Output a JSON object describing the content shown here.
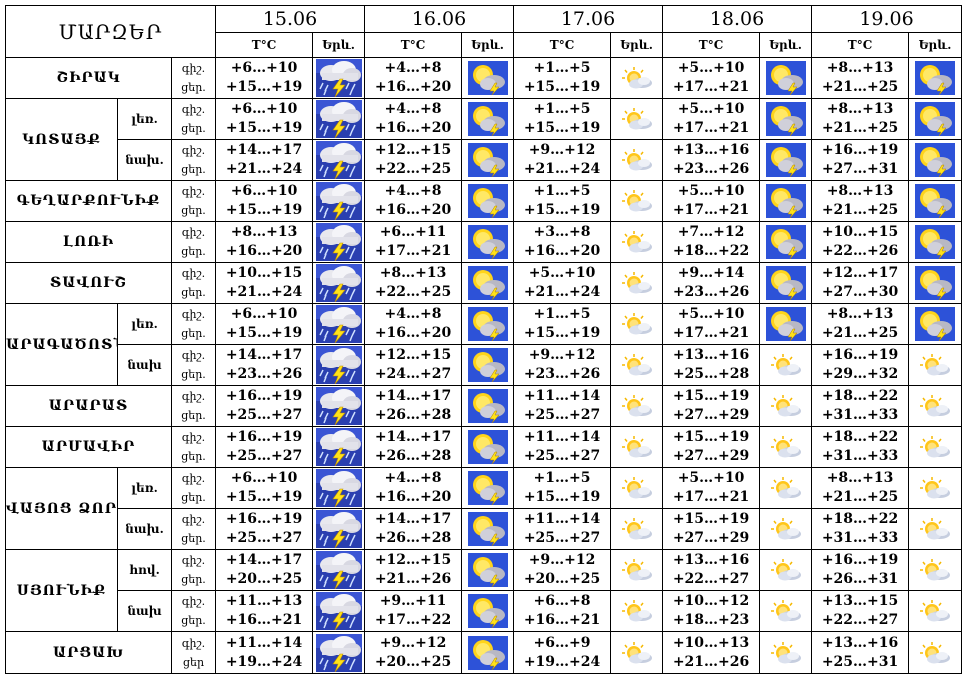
{
  "header_label": "ՄԱՐԶԵՐ",
  "dates": [
    "15.06",
    "16.06",
    "17.06",
    "18.06",
    "19.06"
  ],
  "col_temp": "T°C",
  "col_weather": "Երև.",
  "rows": [
    {
      "region": "ՇԻՐԱԿ",
      "zone": "",
      "labels": [
        "գիշ.",
        "ցեր."
      ],
      "cells": [
        {
          "n": "+6…+10",
          "d": "+15…+19",
          "icon": "thunder-rain-icon"
        },
        {
          "n": "+4…+8",
          "d": "+16…+20",
          "icon": "sun-thunder-icon"
        },
        {
          "n": "+1…+5",
          "d": "+15…+19",
          "icon": "sun-cloud-icon"
        },
        {
          "n": "+5…+10",
          "d": "+17…+21",
          "icon": "sun-thunder-icon"
        },
        {
          "n": "+8…+13",
          "d": "+21…+25",
          "icon": "sun-thunder-icon"
        }
      ]
    },
    {
      "region": "ԿՈՏԱՅՔ",
      "zone": "լեռ.",
      "labels": [
        "գիշ.",
        "ցեր."
      ],
      "cells": [
        {
          "n": "+6…+10",
          "d": "+15…+19",
          "icon": "thunder-rain-icon"
        },
        {
          "n": "+4…+8",
          "d": "+16…+20",
          "icon": "sun-thunder-icon"
        },
        {
          "n": "+1…+5",
          "d": "+15…+19",
          "icon": "sun-cloud-icon"
        },
        {
          "n": "+5…+10",
          "d": "+17…+21",
          "icon": "sun-thunder-icon"
        },
        {
          "n": "+8…+13",
          "d": "+21…+25",
          "icon": "sun-thunder-icon"
        }
      ]
    },
    {
      "region": "",
      "zone": "նախ.",
      "labels": [
        "գիշ.",
        "ցեր."
      ],
      "cells": [
        {
          "n": "+14…+17",
          "d": "+21…+24",
          "icon": "thunder-rain-icon"
        },
        {
          "n": "+12…+15",
          "d": "+22…+25",
          "icon": "sun-thunder-icon"
        },
        {
          "n": "+9…+12",
          "d": "+21…+24",
          "icon": "sun-cloud-icon"
        },
        {
          "n": "+13…+16",
          "d": "+23…+26",
          "icon": "sun-thunder-icon"
        },
        {
          "n": "+16…+19",
          "d": "+27…+31",
          "icon": "sun-thunder-icon"
        }
      ]
    },
    {
      "region": "ԳԵՂԱՐՔՈՒՆԻՔ",
      "zone": "",
      "labels": [
        "գիշ.",
        "ցեր."
      ],
      "cells": [
        {
          "n": "+6…+10",
          "d": "+15…+19",
          "icon": "thunder-rain-icon"
        },
        {
          "n": "+4…+8",
          "d": "+16…+20",
          "icon": "sun-thunder-icon"
        },
        {
          "n": "+1…+5",
          "d": "+15…+19",
          "icon": "sun-cloud-icon"
        },
        {
          "n": "+5…+10",
          "d": "+17…+21",
          "icon": "sun-thunder-icon"
        },
        {
          "n": "+8…+13",
          "d": "+21…+25",
          "icon": "sun-thunder-icon"
        }
      ]
    },
    {
      "region": "ԼՈՌԻ",
      "zone": "",
      "labels": [
        "գիշ.",
        "ցեր."
      ],
      "cells": [
        {
          "n": "+8…+13",
          "d": "+16…+20",
          "icon": "thunder-rain-icon"
        },
        {
          "n": "+6…+11",
          "d": "+17…+21",
          "icon": "sun-thunder-icon"
        },
        {
          "n": "+3…+8",
          "d": "+16…+20",
          "icon": "sun-cloud-icon"
        },
        {
          "n": "+7…+12",
          "d": "+18…+22",
          "icon": "sun-thunder-icon"
        },
        {
          "n": "+10…+15",
          "d": "+22…+26",
          "icon": "sun-thunder-icon"
        }
      ]
    },
    {
      "region": "ՏԱՎՈՒՇ",
      "zone": "",
      "labels": [
        "գիշ.",
        "ցեր."
      ],
      "cells": [
        {
          "n": "+10…+15",
          "d": "+21…+24",
          "icon": "thunder-rain-icon"
        },
        {
          "n": "+8…+13",
          "d": "+22…+25",
          "icon": "sun-thunder-icon"
        },
        {
          "n": "+5…+10",
          "d": "+21…+24",
          "icon": "sun-cloud-icon"
        },
        {
          "n": "+9…+14",
          "d": "+23…+26",
          "icon": "sun-thunder-icon"
        },
        {
          "n": "+12…+17",
          "d": "+27…+30",
          "icon": "sun-thunder-icon"
        }
      ]
    },
    {
      "region": "ԱՐԱԳԱԾՈՏՆ",
      "zone": "լեռ.",
      "labels": [
        "գիշ.",
        "ցեր."
      ],
      "cells": [
        {
          "n": "+6…+10",
          "d": "+15…+19",
          "icon": "thunder-rain-icon"
        },
        {
          "n": "+4…+8",
          "d": "+16…+20",
          "icon": "sun-thunder-icon"
        },
        {
          "n": "+1…+5",
          "d": "+15…+19",
          "icon": "sun-cloud-icon"
        },
        {
          "n": "+5…+10",
          "d": "+17…+21",
          "icon": "sun-thunder-icon"
        },
        {
          "n": "+8…+13",
          "d": "+21…+25",
          "icon": "sun-thunder-icon"
        }
      ]
    },
    {
      "region": "",
      "zone": "նախ",
      "labels": [
        "գիշ.",
        "ցեր."
      ],
      "cells": [
        {
          "n": "+14…+17",
          "d": "+23…+26",
          "icon": "thunder-rain-icon"
        },
        {
          "n": "+12…+15",
          "d": "+24…+27",
          "icon": "sun-thunder-icon"
        },
        {
          "n": "+9…+12",
          "d": "+23…+26",
          "icon": "sun-cloud-icon"
        },
        {
          "n": "+13…+16",
          "d": "+25…+28",
          "icon": "sun-cloud-icon"
        },
        {
          "n": "+16…+19",
          "d": "+29…+32",
          "icon": "sun-cloud-icon"
        }
      ]
    },
    {
      "region": "ԱՐԱՐԱՏ",
      "zone": "",
      "labels": [
        "գիշ.",
        "ցեր."
      ],
      "cells": [
        {
          "n": "+16…+19",
          "d": "+25…+27",
          "icon": "thunder-rain-icon"
        },
        {
          "n": "+14…+17",
          "d": "+26…+28",
          "icon": "sun-thunder-icon"
        },
        {
          "n": "+11…+14",
          "d": "+25…+27",
          "icon": "sun-cloud-icon"
        },
        {
          "n": "+15…+19",
          "d": "+27…+29",
          "icon": "sun-cloud-icon"
        },
        {
          "n": "+18…+22",
          "d": "+31…+33",
          "icon": "sun-cloud-icon"
        }
      ]
    },
    {
      "region": "ԱՐՄԱՎԻՐ",
      "zone": "",
      "labels": [
        "գիշ.",
        "ցեր."
      ],
      "cells": [
        {
          "n": "+16…+19",
          "d": "+25…+27",
          "icon": "thunder-rain-icon"
        },
        {
          "n": "+14…+17",
          "d": "+26…+28",
          "icon": "sun-thunder-icon"
        },
        {
          "n": "+11…+14",
          "d": "+25…+27",
          "icon": "sun-cloud-icon"
        },
        {
          "n": "+15…+19",
          "d": "+27…+29",
          "icon": "sun-cloud-icon"
        },
        {
          "n": "+18…+22",
          "d": "+31…+33",
          "icon": "sun-cloud-icon"
        }
      ]
    },
    {
      "region": "ՎԱՅՈՑ ՁՈՐ",
      "zone": "լեռ.",
      "labels": [
        "գիշ.",
        "ցեր."
      ],
      "cells": [
        {
          "n": "+6…+10",
          "d": "+15…+19",
          "icon": "thunder-rain-icon"
        },
        {
          "n": "+4…+8",
          "d": "+16…+20",
          "icon": "sun-thunder-icon"
        },
        {
          "n": "+1…+5",
          "d": "+15…+19",
          "icon": "sun-cloud-icon"
        },
        {
          "n": "+5…+10",
          "d": "+17…+21",
          "icon": "sun-cloud-icon"
        },
        {
          "n": "+8…+13",
          "d": "+21…+25",
          "icon": "sun-cloud-icon"
        }
      ]
    },
    {
      "region": "",
      "zone": "նախ.",
      "labels": [
        "գիշ.",
        "ցեր."
      ],
      "cells": [
        {
          "n": "+16…+19",
          "d": "+25…+27",
          "icon": "thunder-rain-icon"
        },
        {
          "n": "+14…+17",
          "d": "+26…+28",
          "icon": "sun-thunder-icon"
        },
        {
          "n": "+11…+14",
          "d": "+25…+27",
          "icon": "sun-cloud-icon"
        },
        {
          "n": "+15…+19",
          "d": "+27…+29",
          "icon": "sun-cloud-icon"
        },
        {
          "n": "+18…+22",
          "d": "+31…+33",
          "icon": "sun-cloud-icon"
        }
      ]
    },
    {
      "region": "ՍՅՈՒՆԻՔ",
      "zone": "հով.",
      "labels": [
        "գիշ.",
        "ցեր."
      ],
      "cells": [
        {
          "n": "+14…+17",
          "d": "+20…+25",
          "icon": "thunder-rain-icon"
        },
        {
          "n": "+12…+15",
          "d": "+21…+26",
          "icon": "sun-thunder-icon"
        },
        {
          "n": "+9…+12",
          "d": "+20…+25",
          "icon": "sun-cloud-icon"
        },
        {
          "n": "+13…+16",
          "d": "+22…+27",
          "icon": "sun-cloud-icon"
        },
        {
          "n": "+16…+19",
          "d": "+26…+31",
          "icon": "sun-cloud-icon"
        }
      ]
    },
    {
      "region": "",
      "zone": "նախ",
      "labels": [
        "գիշ.",
        "ցեր."
      ],
      "cells": [
        {
          "n": "+11…+13",
          "d": "+16…+21",
          "icon": "thunder-rain-icon"
        },
        {
          "n": "+9…+11",
          "d": "+17…+22",
          "icon": "sun-thunder-icon"
        },
        {
          "n": "+6…+8",
          "d": "+16…+21",
          "icon": "sun-cloud-icon"
        },
        {
          "n": "+10…+12",
          "d": "+18…+23",
          "icon": "sun-cloud-icon"
        },
        {
          "n": "+13…+15",
          "d": "+22…+27",
          "icon": "sun-cloud-icon"
        }
      ]
    },
    {
      "region": "ԱՐՑԱԽ",
      "zone": "",
      "labels": [
        "գիշ.",
        "ցեր"
      ],
      "cells": [
        {
          "n": "+11…+14",
          "d": "+19…+24",
          "icon": "thunder-rain-icon"
        },
        {
          "n": "+9…+12",
          "d": "+20…+25",
          "icon": "sun-thunder-icon"
        },
        {
          "n": "+6…+9",
          "d": "+19…+24",
          "icon": "sun-cloud-icon"
        },
        {
          "n": "+10…+13",
          "d": "+21…+26",
          "icon": "sun-cloud-icon"
        },
        {
          "n": "+13…+16",
          "d": "+25…+31",
          "icon": "sun-cloud-icon"
        }
      ]
    }
  ]
}
